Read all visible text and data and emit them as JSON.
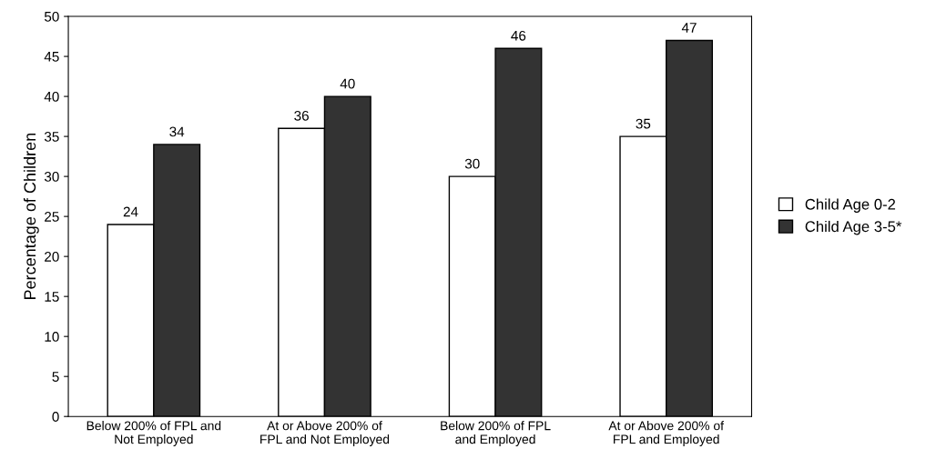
{
  "chart_data": {
    "type": "bar",
    "ylabel": "Percentage of Children",
    "categories": [
      "Below 200% of FPL and\nNot Employed",
      "At or Above 200% of\nFPL and Not Employed",
      "Below 200% of FPL\nand Employed",
      "At or Above 200% of\nFPL and Employed"
    ],
    "series": [
      {
        "name": "Child Age 0-2",
        "color": "#ffffff",
        "values": [
          24,
          36,
          30,
          35
        ]
      },
      {
        "name": "Child Age 3-5*",
        "color": "#333333",
        "values": [
          34,
          40,
          46,
          47
        ]
      }
    ],
    "ylim": [
      0,
      50
    ],
    "yticks": [
      0,
      5,
      10,
      15,
      20,
      25,
      30,
      35,
      40,
      45,
      50
    ],
    "data_labels": true,
    "grid": false,
    "legend": "right"
  }
}
